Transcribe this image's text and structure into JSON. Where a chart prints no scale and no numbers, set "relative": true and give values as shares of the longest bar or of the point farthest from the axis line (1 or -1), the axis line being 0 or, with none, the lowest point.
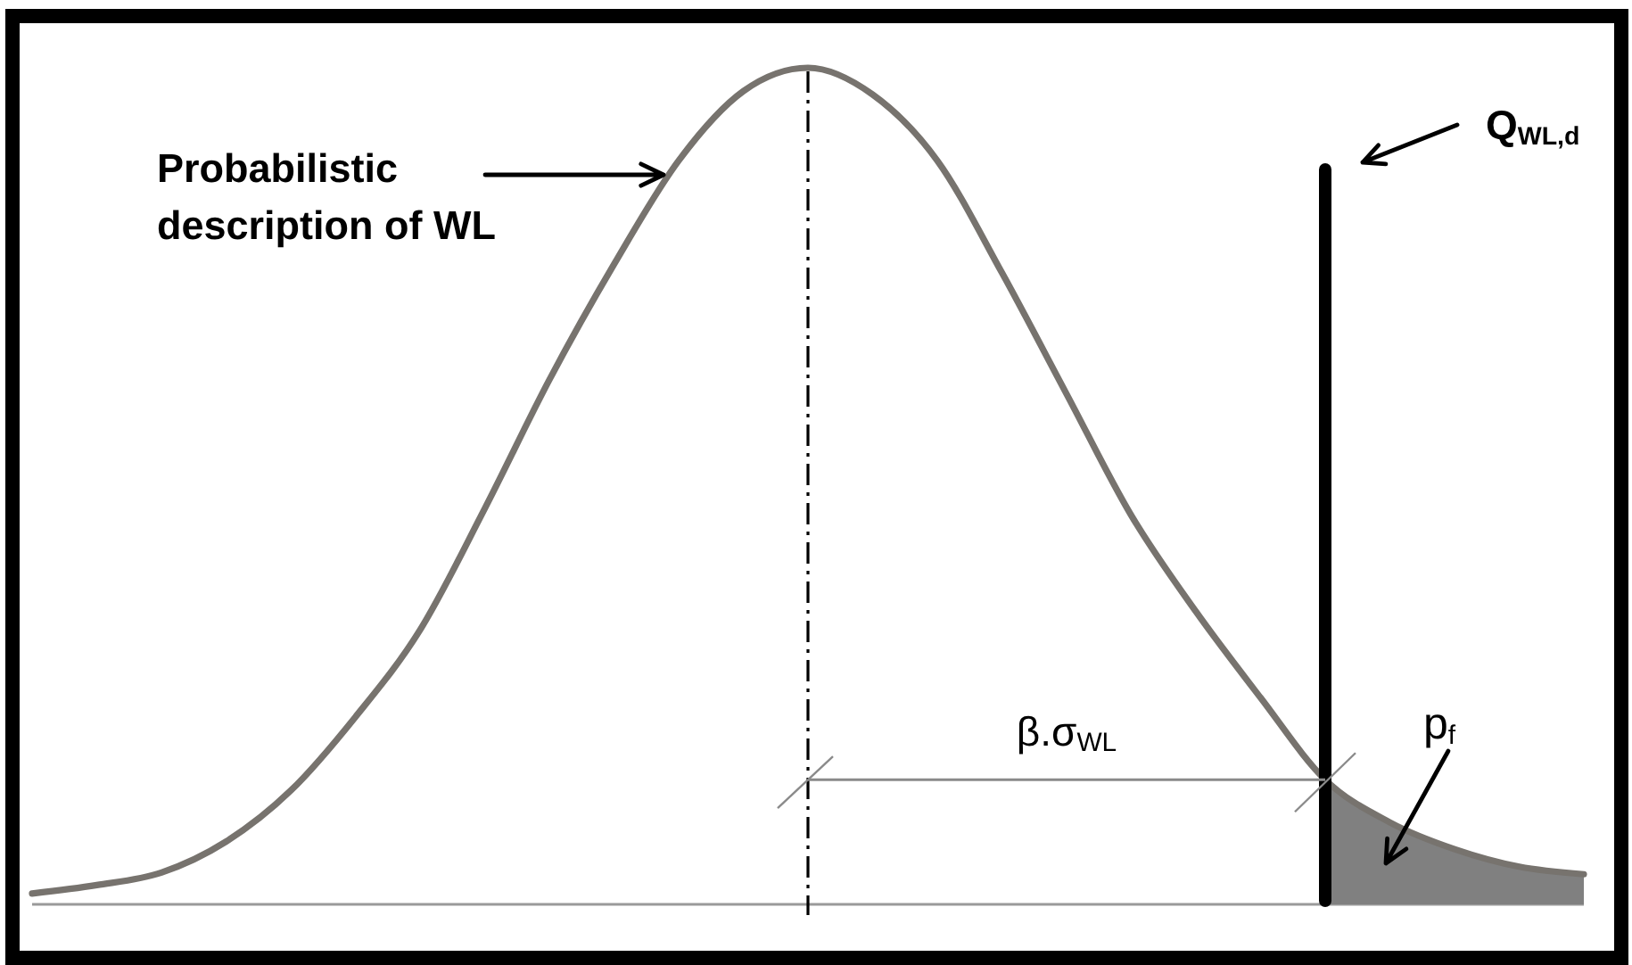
{
  "chart_data": {
    "type": "line",
    "relative": true,
    "categories": [
      null,
      null,
      null,
      null,
      null,
      null,
      null,
      null,
      null,
      null,
      null,
      null,
      null,
      null,
      null,
      null,
      null,
      null,
      null,
      null,
      null,
      null,
      null,
      null,
      null
    ],
    "series": [
      {
        "color": "#77736e",
        "values": [
          0.013,
          0.023,
          0.038,
          0.075,
          0.136,
          0.224,
          0.328,
          0.473,
          0.627,
          0.765,
          0.889,
          0.972,
          1,
          0.968,
          0.889,
          0.755,
          0.61,
          0.465,
          0.35,
          0.247,
          0.149,
          0.098,
          0.066,
          0.045,
          0.036
        ]
      },
      {
        "type": "area",
        "color": "#808080",
        "values": [
          null,
          null,
          null,
          null,
          null,
          null,
          null,
          null,
          null,
          null,
          null,
          null,
          null,
          null,
          null,
          null,
          null,
          null,
          null,
          null,
          0.149,
          0.098,
          0.066,
          0.045,
          0.036
        ]
      }
    ],
    "annotations": [
      "Probabilistic description of WL",
      "Q$_{WL,d}$",
      "β.σ$_{WL}$",
      "p$_{f}$"
    ]
  }
}
